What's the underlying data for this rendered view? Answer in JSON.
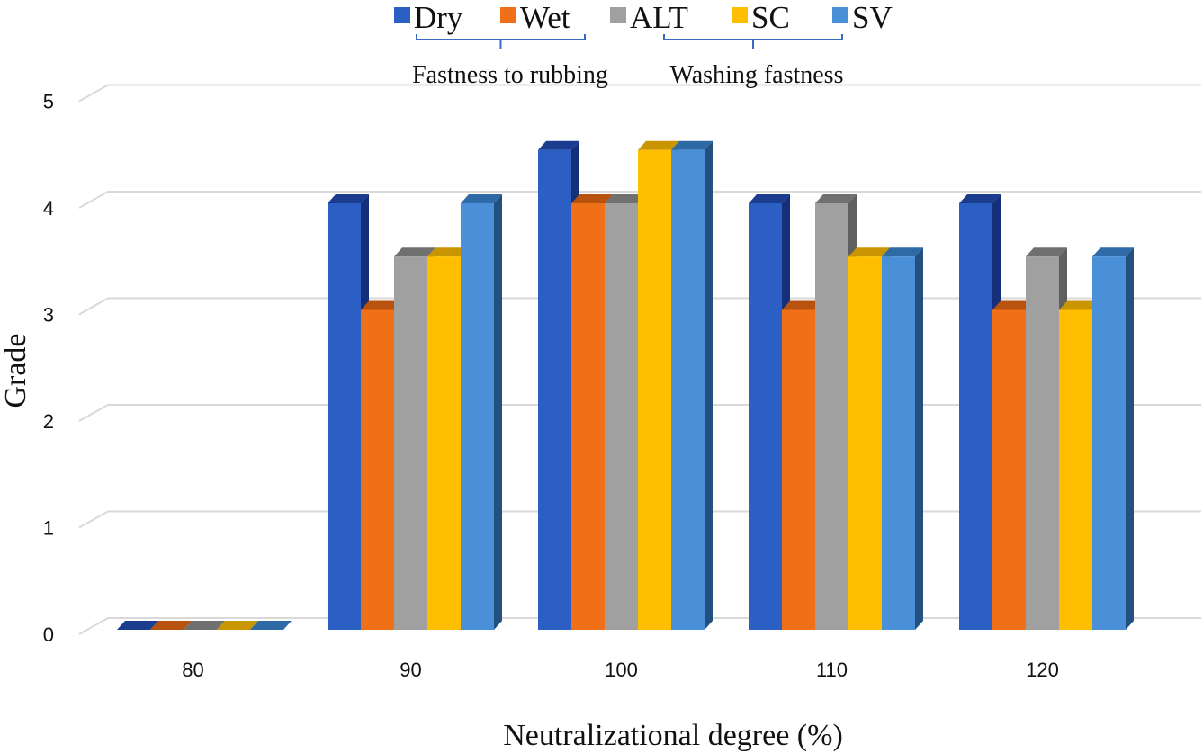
{
  "chart_data": {
    "type": "bar",
    "style": "3d-clustered-column",
    "categories": [
      "80",
      "90",
      "100",
      "110",
      "120"
    ],
    "series": [
      {
        "name": "Dry",
        "values": [
          0,
          4,
          4.5,
          4,
          4
        ]
      },
      {
        "name": "Wet",
        "values": [
          0,
          3,
          4,
          3,
          3
        ]
      },
      {
        "name": "ALT",
        "values": [
          0,
          3.5,
          4,
          4,
          3.5
        ]
      },
      {
        "name": "SC",
        "values": [
          0,
          3.5,
          4.5,
          3.5,
          3
        ]
      },
      {
        "name": "SV",
        "values": [
          0,
          4,
          4.5,
          3.5,
          3.5
        ]
      }
    ],
    "legend_groups": [
      {
        "label": "Fastness to rubbing",
        "series": [
          "Dry",
          "Wet"
        ]
      },
      {
        "label": "Washing fastness",
        "series": [
          "ALT",
          "SC",
          "SV"
        ]
      }
    ],
    "xlabel": "Neutralizational degree (%)",
    "ylabel": "Grade",
    "yticks": [
      0,
      1,
      2,
      3,
      4,
      5
    ],
    "ylim": [
      0,
      5
    ],
    "grid": true,
    "legend_position": "top"
  },
  "colors": {
    "Dry": {
      "front": "#2b5fc4",
      "side": "#15307a",
      "top": "#1b3d8f"
    },
    "Wet": {
      "front": "#f07018",
      "side": "#98430c",
      "top": "#b8520f"
    },
    "ALT": {
      "front": "#a0a0a0",
      "side": "#5f5f5f",
      "top": "#707070"
    },
    "SC": {
      "front": "#ffbf00",
      "side": "#b88500",
      "top": "#c99500"
    },
    "SV": {
      "front": "#4a90d9",
      "side": "#23507f",
      "top": "#2e6aa6"
    },
    "gridline": "#d9d9d9",
    "bracket": "#3a6bc4"
  }
}
